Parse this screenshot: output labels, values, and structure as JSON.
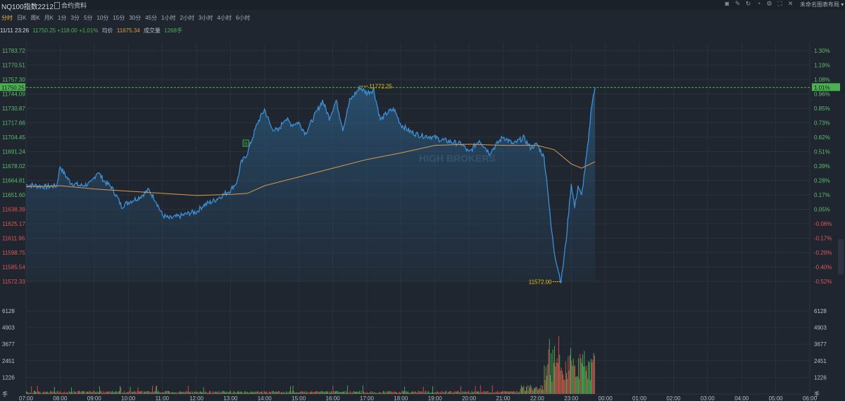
{
  "header": {
    "title": "NQ100指数2212",
    "contract_label": "合约资料",
    "layout_label": "未命名图表布局 ▾",
    "tool_icons": [
      "camera-icon",
      "edit-icon",
      "refresh-icon",
      "bell-icon",
      "gear-icon",
      "fullscreen-icon",
      "close-icon"
    ]
  },
  "periods": [
    "分时",
    "日K",
    "周K",
    "月K",
    "1分",
    "3分",
    "5分",
    "10分",
    "15分",
    "30分",
    "45分",
    "1小时",
    "2小时",
    "3小时",
    "4小时",
    "6小时"
  ],
  "active_period": "分时",
  "info": {
    "time": "11/11 23:26",
    "price_change": "11750.25 +118.00 +1.01%",
    "avg_label": "均价",
    "avg_value": "11675.34",
    "volume_label": "成交量",
    "volume_value": "1268手"
  },
  "watermark": "HIGH BROKERS",
  "colors": {
    "price_line": "#3d8fd6",
    "avg_line": "#d69a4f",
    "up": "#4caf50",
    "down": "#e04b4b",
    "label_bg": "#4caf50",
    "marker": "#f0c000"
  },
  "chart_data": {
    "type": "line",
    "price_axis_ticks": [
      "11783.72",
      "11770.51",
      "11757.30",
      "11744.09",
      "11730.87",
      "11717.66",
      "11704.45",
      "11691.24",
      "11678.02",
      "11664.81",
      "11651.60",
      "11638.39",
      "11625.17",
      "11611.96",
      "11598.75",
      "11585.54",
      "11572.33"
    ],
    "percent_axis_ticks": [
      "1.30%",
      "1.19%",
      "1.08%",
      "0.96%",
      "0.85%",
      "0.73%",
      "0.62%",
      "0.51%",
      "0.39%",
      "0.28%",
      "0.17%",
      "0.05%",
      "-0.06%",
      "-0.17%",
      "-0.29%",
      "-0.40%",
      "-0.52%"
    ],
    "volume_axis_ticks": [
      "6128",
      "4903",
      "3677",
      "2451",
      "1226",
      "手"
    ],
    "x_ticks": [
      "07:00",
      "08:00",
      "09:00",
      "10:00",
      "11:00",
      "12:00",
      "13:00",
      "14:00",
      "15:00",
      "16:00",
      "17:00",
      "18:00",
      "19:00",
      "20:00",
      "21:00",
      "22:00",
      "23:00",
      "00:00",
      "01:00",
      "02:00",
      "03:00",
      "04:00",
      "05:00",
      "06:00"
    ],
    "ylim": [
      11572.33,
      11783.72
    ],
    "volume_max": 6128,
    "last_price_label": "11750.25",
    "last_percent_label": "1.01%",
    "high_label": "11772.25",
    "low_label": "11572.00",
    "signal_badge": "B",
    "price_series": [
      [
        0,
        11661
      ],
      [
        0.3,
        11660
      ],
      [
        0.6,
        11659
      ],
      [
        0.9,
        11660
      ],
      [
        1.0,
        11678
      ],
      [
        1.1,
        11672
      ],
      [
        1.3,
        11663
      ],
      [
        1.6,
        11660
      ],
      [
        1.9,
        11662
      ],
      [
        2.1,
        11673
      ],
      [
        2.3,
        11664
      ],
      [
        2.5,
        11659
      ],
      [
        2.7,
        11648
      ],
      [
        2.8,
        11641
      ],
      [
        3.0,
        11645
      ],
      [
        3.3,
        11649
      ],
      [
        3.6,
        11656
      ],
      [
        3.8,
        11647
      ],
      [
        4.0,
        11633
      ],
      [
        4.2,
        11630
      ],
      [
        4.5,
        11632
      ],
      [
        4.8,
        11635
      ],
      [
        5.0,
        11636
      ],
      [
        5.2,
        11642
      ],
      [
        5.5,
        11646
      ],
      [
        5.8,
        11652
      ],
      [
        6.0,
        11656
      ],
      [
        6.2,
        11664
      ],
      [
        6.3,
        11680
      ],
      [
        6.5,
        11690
      ],
      [
        6.6,
        11700
      ],
      [
        6.8,
        11718
      ],
      [
        7.0,
        11730
      ],
      [
        7.2,
        11713
      ],
      [
        7.4,
        11710
      ],
      [
        7.6,
        11722
      ],
      [
        7.8,
        11716
      ],
      [
        8.0,
        11718
      ],
      [
        8.2,
        11708
      ],
      [
        8.5,
        11726
      ],
      [
        8.7,
        11738
      ],
      [
        8.9,
        11722
      ],
      [
        9.1,
        11738
      ],
      [
        9.3,
        11712
      ],
      [
        9.5,
        11738
      ],
      [
        9.8,
        11750
      ],
      [
        10.0,
        11745
      ],
      [
        10.2,
        11748
      ],
      [
        10.4,
        11720
      ],
      [
        10.6,
        11727
      ],
      [
        10.8,
        11730
      ],
      [
        11.0,
        11716
      ],
      [
        11.3,
        11709
      ],
      [
        11.6,
        11706
      ],
      [
        11.9,
        11705
      ],
      [
        12.2,
        11702
      ],
      [
        12.5,
        11700
      ],
      [
        12.8,
        11698
      ],
      [
        13.0,
        11690
      ],
      [
        13.3,
        11702
      ],
      [
        13.6,
        11690
      ],
      [
        14.0,
        11705
      ],
      [
        14.3,
        11698
      ],
      [
        14.6,
        11704
      ],
      [
        14.8,
        11695
      ],
      [
        15.0,
        11698
      ],
      [
        15.2,
        11686
      ],
      [
        15.3,
        11660
      ],
      [
        15.4,
        11625
      ],
      [
        15.5,
        11600
      ],
      [
        15.6,
        11585
      ],
      [
        15.7,
        11572
      ],
      [
        15.85,
        11610
      ],
      [
        16.0,
        11662
      ],
      [
        16.1,
        11640
      ],
      [
        16.2,
        11660
      ],
      [
        16.3,
        11650
      ],
      [
        16.4,
        11675
      ],
      [
        16.5,
        11700
      ],
      [
        16.6,
        11735
      ],
      [
        16.7,
        11750
      ]
    ],
    "avg_series": [
      [
        0,
        11659
      ],
      [
        1,
        11660
      ],
      [
        2,
        11657
      ],
      [
        3,
        11655
      ],
      [
        4,
        11653
      ],
      [
        5,
        11651
      ],
      [
        6,
        11652
      ],
      [
        6.5,
        11653
      ],
      [
        7,
        11660
      ],
      [
        8,
        11668
      ],
      [
        9,
        11676
      ],
      [
        10,
        11684
      ],
      [
        11,
        11690
      ],
      [
        12,
        11697
      ],
      [
        13,
        11698
      ],
      [
        14,
        11697
      ],
      [
        15,
        11697
      ],
      [
        15.5,
        11693
      ],
      [
        16,
        11680
      ],
      [
        16.3,
        11676
      ],
      [
        16.7,
        11682
      ]
    ],
    "volume_pattern": "low 07:00–21:00, rising after 21:30, peak near 22:30"
  }
}
